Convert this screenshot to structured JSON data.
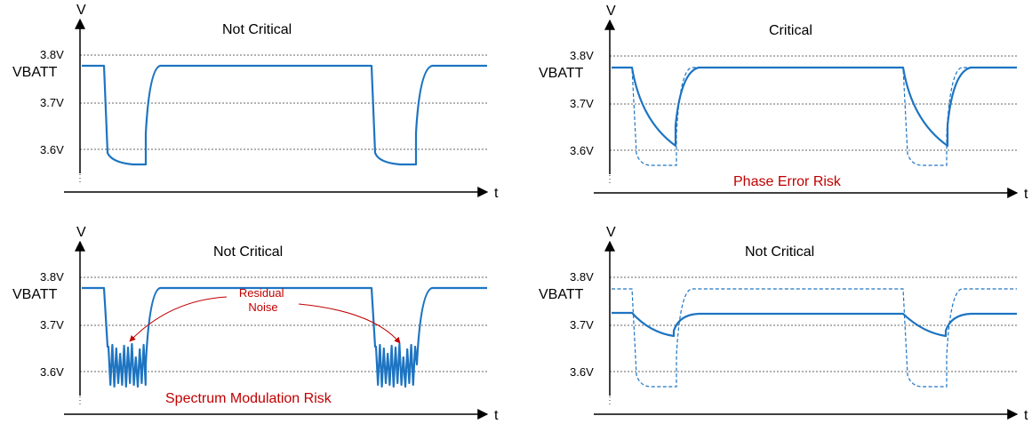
{
  "colors": {
    "waveform": "#1d74c2",
    "risk_text": "#c00000",
    "axes": "#000000"
  },
  "panels": [
    {
      "id": "top-left",
      "title": "Not Critical",
      "y_axis_label": "V",
      "x_axis_label": "t",
      "ticks": {
        "v38": "3.8V",
        "vbatt": "VBATT",
        "v37": "3.7V",
        "v36": "3.6V"
      },
      "risk_label": "",
      "note_label": "",
      "series": [
        {
          "style": "solid",
          "shape": "sharp-drop",
          "nominal_v": 3.78,
          "min_v": 3.57
        }
      ]
    },
    {
      "id": "top-right",
      "title": "Critical",
      "y_axis_label": "V",
      "x_axis_label": "t",
      "ticks": {
        "v38": "3.8V",
        "vbatt": "VBATT",
        "v37": "3.7V",
        "v36": "3.6V"
      },
      "risk_label": "Phase Error Risk",
      "note_label": "",
      "series": [
        {
          "style": "solid",
          "shape": "slow-decay",
          "nominal_v": 3.78,
          "min_v": 3.61
        },
        {
          "style": "dashed",
          "shape": "sharp-drop",
          "nominal_v": 3.78,
          "min_v": 3.57
        }
      ]
    },
    {
      "id": "bottom-left",
      "title": "Not Critical",
      "y_axis_label": "V",
      "x_axis_label": "t",
      "ticks": {
        "v38": "3.8V",
        "vbatt": "VBATT",
        "v37": "3.7V",
        "v36": "3.6V"
      },
      "risk_label": "Spectrum Modulation Risk",
      "note_label": "Residual Noise",
      "note_lines": [
        "Residual",
        "Noise"
      ],
      "series": [
        {
          "style": "solid",
          "shape": "noisy-drop",
          "nominal_v": 3.78,
          "min_v": 3.57
        }
      ]
    },
    {
      "id": "bottom-right",
      "title": "Not Critical",
      "y_axis_label": "V",
      "x_axis_label": "t",
      "ticks": {
        "v38": "3.8V",
        "vbatt": "VBATT",
        "v37": "3.7V",
        "v36": "3.6V"
      },
      "risk_label": "",
      "note_label": "",
      "series": [
        {
          "style": "solid",
          "shape": "small-decay",
          "nominal_v": 3.72,
          "min_v": 3.675
        },
        {
          "style": "dashed",
          "shape": "sharp-drop",
          "nominal_v": 3.78,
          "min_v": 3.57
        }
      ]
    }
  ]
}
